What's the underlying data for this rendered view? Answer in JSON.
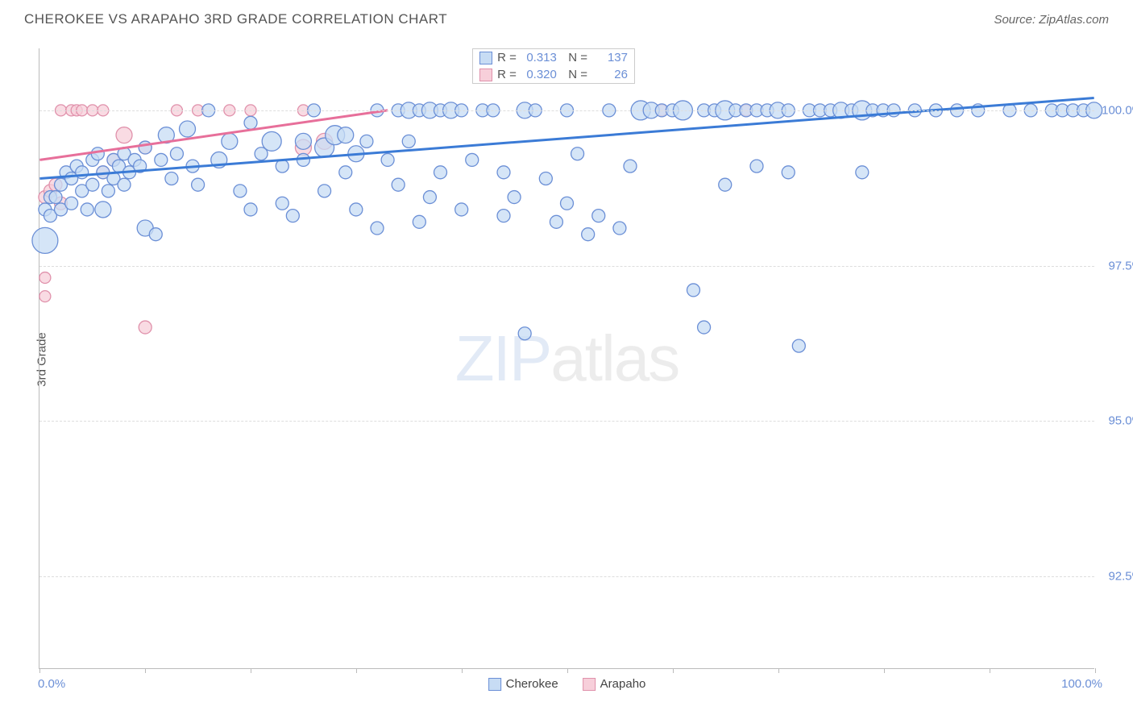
{
  "title": "CHEROKEE VS ARAPAHO 3RD GRADE CORRELATION CHART",
  "source": "Source: ZipAtlas.com",
  "watermark": {
    "zip": "ZIP",
    "atlas": "atlas"
  },
  "y_axis_title": "3rd Grade",
  "chart": {
    "type": "scatter",
    "background_color": "#ffffff",
    "grid_color": "#dddddd",
    "xlim": [
      0,
      100
    ],
    "ylim": [
      91,
      101
    ],
    "x_range_labels": {
      "min": "0.0%",
      "max": "100.0%"
    },
    "x_ticks_pct": [
      0,
      10,
      20,
      30,
      40,
      50,
      60,
      70,
      80,
      90,
      100
    ],
    "y_ticks": [
      {
        "v": 92.5,
        "label": "92.5%"
      },
      {
        "v": 95.0,
        "label": "95.0%"
      },
      {
        "v": 97.5,
        "label": "97.5%"
      },
      {
        "v": 100.0,
        "label": "100.0%"
      }
    ],
    "series": {
      "cherokee": {
        "label": "Cherokee",
        "fill": "#c7dcf4",
        "stroke": "#6b8fd6",
        "line_color": "#3b7bd6",
        "opacity": 0.75,
        "stats": {
          "r": "0.313",
          "n": "137"
        },
        "regression": {
          "x1": 0,
          "y1": 98.9,
          "x2": 100,
          "y2": 100.2
        },
        "points": [
          {
            "x": 0.5,
            "y": 97.9,
            "r": 16
          },
          {
            "x": 0.5,
            "y": 98.4,
            "r": 8
          },
          {
            "x": 1,
            "y": 98.3,
            "r": 8
          },
          {
            "x": 1,
            "y": 98.6,
            "r": 8
          },
          {
            "x": 1.5,
            "y": 98.6,
            "r": 8
          },
          {
            "x": 2,
            "y": 98.4,
            "r": 8
          },
          {
            "x": 2,
            "y": 98.8,
            "r": 8
          },
          {
            "x": 2.5,
            "y": 99.0,
            "r": 8
          },
          {
            "x": 3,
            "y": 98.5,
            "r": 8
          },
          {
            "x": 3,
            "y": 98.9,
            "r": 8
          },
          {
            "x": 3.5,
            "y": 99.1,
            "r": 8
          },
          {
            "x": 4,
            "y": 98.7,
            "r": 8
          },
          {
            "x": 4,
            "y": 99.0,
            "r": 8
          },
          {
            "x": 4.5,
            "y": 98.4,
            "r": 8
          },
          {
            "x": 5,
            "y": 99.2,
            "r": 8
          },
          {
            "x": 5,
            "y": 98.8,
            "r": 8
          },
          {
            "x": 5.5,
            "y": 99.3,
            "r": 8
          },
          {
            "x": 6,
            "y": 98.4,
            "r": 10
          },
          {
            "x": 6,
            "y": 99.0,
            "r": 8
          },
          {
            "x": 6.5,
            "y": 98.7,
            "r": 8
          },
          {
            "x": 7,
            "y": 99.2,
            "r": 8
          },
          {
            "x": 7,
            "y": 98.9,
            "r": 8
          },
          {
            "x": 7.5,
            "y": 99.1,
            "r": 8
          },
          {
            "x": 8,
            "y": 98.8,
            "r": 8
          },
          {
            "x": 8,
            "y": 99.3,
            "r": 8
          },
          {
            "x": 8.5,
            "y": 99.0,
            "r": 8
          },
          {
            "x": 9,
            "y": 99.2,
            "r": 8
          },
          {
            "x": 9.5,
            "y": 99.1,
            "r": 8
          },
          {
            "x": 10,
            "y": 98.1,
            "r": 10
          },
          {
            "x": 10,
            "y": 99.4,
            "r": 8
          },
          {
            "x": 11,
            "y": 98.0,
            "r": 8
          },
          {
            "x": 11.5,
            "y": 99.2,
            "r": 8
          },
          {
            "x": 12,
            "y": 99.6,
            "r": 10
          },
          {
            "x": 12.5,
            "y": 98.9,
            "r": 8
          },
          {
            "x": 13,
            "y": 99.3,
            "r": 8
          },
          {
            "x": 14,
            "y": 99.7,
            "r": 10
          },
          {
            "x": 14.5,
            "y": 99.1,
            "r": 8
          },
          {
            "x": 15,
            "y": 98.8,
            "r": 8
          },
          {
            "x": 16,
            "y": 100.0,
            "r": 8
          },
          {
            "x": 17,
            "y": 99.2,
            "r": 10
          },
          {
            "x": 18,
            "y": 99.5,
            "r": 10
          },
          {
            "x": 19,
            "y": 98.7,
            "r": 8
          },
          {
            "x": 20,
            "y": 98.4,
            "r": 8
          },
          {
            "x": 20,
            "y": 99.8,
            "r": 8
          },
          {
            "x": 21,
            "y": 99.3,
            "r": 8
          },
          {
            "x": 22,
            "y": 99.5,
            "r": 12
          },
          {
            "x": 23,
            "y": 98.5,
            "r": 8
          },
          {
            "x": 23,
            "y": 99.1,
            "r": 8
          },
          {
            "x": 24,
            "y": 98.3,
            "r": 8
          },
          {
            "x": 25,
            "y": 99.5,
            "r": 10
          },
          {
            "x": 25,
            "y": 99.2,
            "r": 8
          },
          {
            "x": 26,
            "y": 100.0,
            "r": 8
          },
          {
            "x": 27,
            "y": 98.7,
            "r": 8
          },
          {
            "x": 27,
            "y": 99.4,
            "r": 12
          },
          {
            "x": 28,
            "y": 99.6,
            "r": 12
          },
          {
            "x": 29,
            "y": 99.0,
            "r": 8
          },
          {
            "x": 29,
            "y": 99.6,
            "r": 10
          },
          {
            "x": 30,
            "y": 98.4,
            "r": 8
          },
          {
            "x": 30,
            "y": 99.3,
            "r": 10
          },
          {
            "x": 31,
            "y": 99.5,
            "r": 8
          },
          {
            "x": 32,
            "y": 98.1,
            "r": 8
          },
          {
            "x": 32,
            "y": 100.0,
            "r": 8
          },
          {
            "x": 33,
            "y": 99.2,
            "r": 8
          },
          {
            "x": 34,
            "y": 98.8,
            "r": 8
          },
          {
            "x": 34,
            "y": 100.0,
            "r": 8
          },
          {
            "x": 35,
            "y": 99.5,
            "r": 8
          },
          {
            "x": 35,
            "y": 100.0,
            "r": 10
          },
          {
            "x": 36,
            "y": 98.2,
            "r": 8
          },
          {
            "x": 36,
            "y": 100.0,
            "r": 8
          },
          {
            "x": 37,
            "y": 98.6,
            "r": 8
          },
          {
            "x": 37,
            "y": 100.0,
            "r": 10
          },
          {
            "x": 38,
            "y": 99.0,
            "r": 8
          },
          {
            "x": 38,
            "y": 100.0,
            "r": 8
          },
          {
            "x": 39,
            "y": 100.0,
            "r": 10
          },
          {
            "x": 40,
            "y": 98.4,
            "r": 8
          },
          {
            "x": 40,
            "y": 100.0,
            "r": 8
          },
          {
            "x": 41,
            "y": 99.2,
            "r": 8
          },
          {
            "x": 42,
            "y": 100.0,
            "r": 8
          },
          {
            "x": 43,
            "y": 100.0,
            "r": 8
          },
          {
            "x": 44,
            "y": 98.3,
            "r": 8
          },
          {
            "x": 44,
            "y": 99.0,
            "r": 8
          },
          {
            "x": 45,
            "y": 98.6,
            "r": 8
          },
          {
            "x": 46,
            "y": 96.4,
            "r": 8
          },
          {
            "x": 46,
            "y": 100.0,
            "r": 10
          },
          {
            "x": 47,
            "y": 100.0,
            "r": 8
          },
          {
            "x": 48,
            "y": 98.9,
            "r": 8
          },
          {
            "x": 49,
            "y": 98.2,
            "r": 8
          },
          {
            "x": 50,
            "y": 98.5,
            "r": 8
          },
          {
            "x": 50,
            "y": 100.0,
            "r": 8
          },
          {
            "x": 51,
            "y": 99.3,
            "r": 8
          },
          {
            "x": 52,
            "y": 98.0,
            "r": 8
          },
          {
            "x": 53,
            "y": 98.3,
            "r": 8
          },
          {
            "x": 54,
            "y": 100.0,
            "r": 8
          },
          {
            "x": 55,
            "y": 98.1,
            "r": 8
          },
          {
            "x": 56,
            "y": 99.1,
            "r": 8
          },
          {
            "x": 57,
            "y": 100.0,
            "r": 12
          },
          {
            "x": 58,
            "y": 100.0,
            "r": 10
          },
          {
            "x": 59,
            "y": 100.0,
            "r": 8
          },
          {
            "x": 60,
            "y": 100.0,
            "r": 8
          },
          {
            "x": 61,
            "y": 100.0,
            "r": 12
          },
          {
            "x": 62,
            "y": 97.1,
            "r": 8
          },
          {
            "x": 63,
            "y": 100.0,
            "r": 8
          },
          {
            "x": 63,
            "y": 96.5,
            "r": 8
          },
          {
            "x": 64,
            "y": 100.0,
            "r": 8
          },
          {
            "x": 65,
            "y": 98.8,
            "r": 8
          },
          {
            "x": 65,
            "y": 100.0,
            "r": 12
          },
          {
            "x": 66,
            "y": 100.0,
            "r": 8
          },
          {
            "x": 67,
            "y": 100.0,
            "r": 8
          },
          {
            "x": 68,
            "y": 100.0,
            "r": 8
          },
          {
            "x": 68,
            "y": 99.1,
            "r": 8
          },
          {
            "x": 69,
            "y": 100.0,
            "r": 8
          },
          {
            "x": 70,
            "y": 100.0,
            "r": 10
          },
          {
            "x": 71,
            "y": 100.0,
            "r": 8
          },
          {
            "x": 71,
            "y": 99.0,
            "r": 8
          },
          {
            "x": 72,
            "y": 96.2,
            "r": 8
          },
          {
            "x": 73,
            "y": 100.0,
            "r": 8
          },
          {
            "x": 74,
            "y": 100.0,
            "r": 8
          },
          {
            "x": 75,
            "y": 100.0,
            "r": 8
          },
          {
            "x": 76,
            "y": 100.0,
            "r": 10
          },
          {
            "x": 77,
            "y": 100.0,
            "r": 8
          },
          {
            "x": 78,
            "y": 99.0,
            "r": 8
          },
          {
            "x": 78,
            "y": 100.0,
            "r": 12
          },
          {
            "x": 79,
            "y": 100.0,
            "r": 8
          },
          {
            "x": 80,
            "y": 100.0,
            "r": 8
          },
          {
            "x": 81,
            "y": 100.0,
            "r": 8
          },
          {
            "x": 83,
            "y": 100.0,
            "r": 8
          },
          {
            "x": 85,
            "y": 100.0,
            "r": 8
          },
          {
            "x": 87,
            "y": 100.0,
            "r": 8
          },
          {
            "x": 89,
            "y": 100.0,
            "r": 8
          },
          {
            "x": 92,
            "y": 100.0,
            "r": 8
          },
          {
            "x": 94,
            "y": 100.0,
            "r": 8
          },
          {
            "x": 96,
            "y": 100.0,
            "r": 8
          },
          {
            "x": 97,
            "y": 100.0,
            "r": 8
          },
          {
            "x": 98,
            "y": 100.0,
            "r": 8
          },
          {
            "x": 99,
            "y": 100.0,
            "r": 8
          },
          {
            "x": 100,
            "y": 100.0,
            "r": 10
          }
        ]
      },
      "arapaho": {
        "label": "Arapaho",
        "fill": "#f7cfda",
        "stroke": "#e091ab",
        "line_color": "#e76f9a",
        "opacity": 0.75,
        "stats": {
          "r": "0.320",
          "n": "26"
        },
        "regression": {
          "x1": 0,
          "y1": 99.2,
          "x2": 33,
          "y2": 100.0
        },
        "points": [
          {
            "x": 0.5,
            "y": 98.6,
            "r": 8
          },
          {
            "x": 0.5,
            "y": 97.3,
            "r": 7
          },
          {
            "x": 0.5,
            "y": 97.0,
            "r": 7
          },
          {
            "x": 1,
            "y": 98.7,
            "r": 8
          },
          {
            "x": 1.5,
            "y": 98.8,
            "r": 8
          },
          {
            "x": 2,
            "y": 98.5,
            "r": 8
          },
          {
            "x": 2,
            "y": 100.0,
            "r": 7
          },
          {
            "x": 3,
            "y": 100.0,
            "r": 7
          },
          {
            "x": 3.5,
            "y": 100.0,
            "r": 7
          },
          {
            "x": 4,
            "y": 100.0,
            "r": 7
          },
          {
            "x": 5,
            "y": 100.0,
            "r": 7
          },
          {
            "x": 6,
            "y": 100.0,
            "r": 7
          },
          {
            "x": 6,
            "y": 99.0,
            "r": 8
          },
          {
            "x": 7,
            "y": 99.2,
            "r": 8
          },
          {
            "x": 8,
            "y": 99.6,
            "r": 10
          },
          {
            "x": 10,
            "y": 99.4,
            "r": 8
          },
          {
            "x": 10,
            "y": 96.5,
            "r": 8
          },
          {
            "x": 13,
            "y": 100.0,
            "r": 7
          },
          {
            "x": 15,
            "y": 100.0,
            "r": 7
          },
          {
            "x": 18,
            "y": 100.0,
            "r": 7
          },
          {
            "x": 20,
            "y": 100.0,
            "r": 7
          },
          {
            "x": 25,
            "y": 100.0,
            "r": 7
          },
          {
            "x": 25,
            "y": 99.4,
            "r": 10
          },
          {
            "x": 27,
            "y": 99.5,
            "r": 10
          },
          {
            "x": 59,
            "y": 100.0,
            "r": 7
          },
          {
            "x": 67,
            "y": 100.0,
            "r": 7
          }
        ]
      }
    },
    "stats_box": {
      "left_pct": 41,
      "top_pct": 0
    }
  }
}
